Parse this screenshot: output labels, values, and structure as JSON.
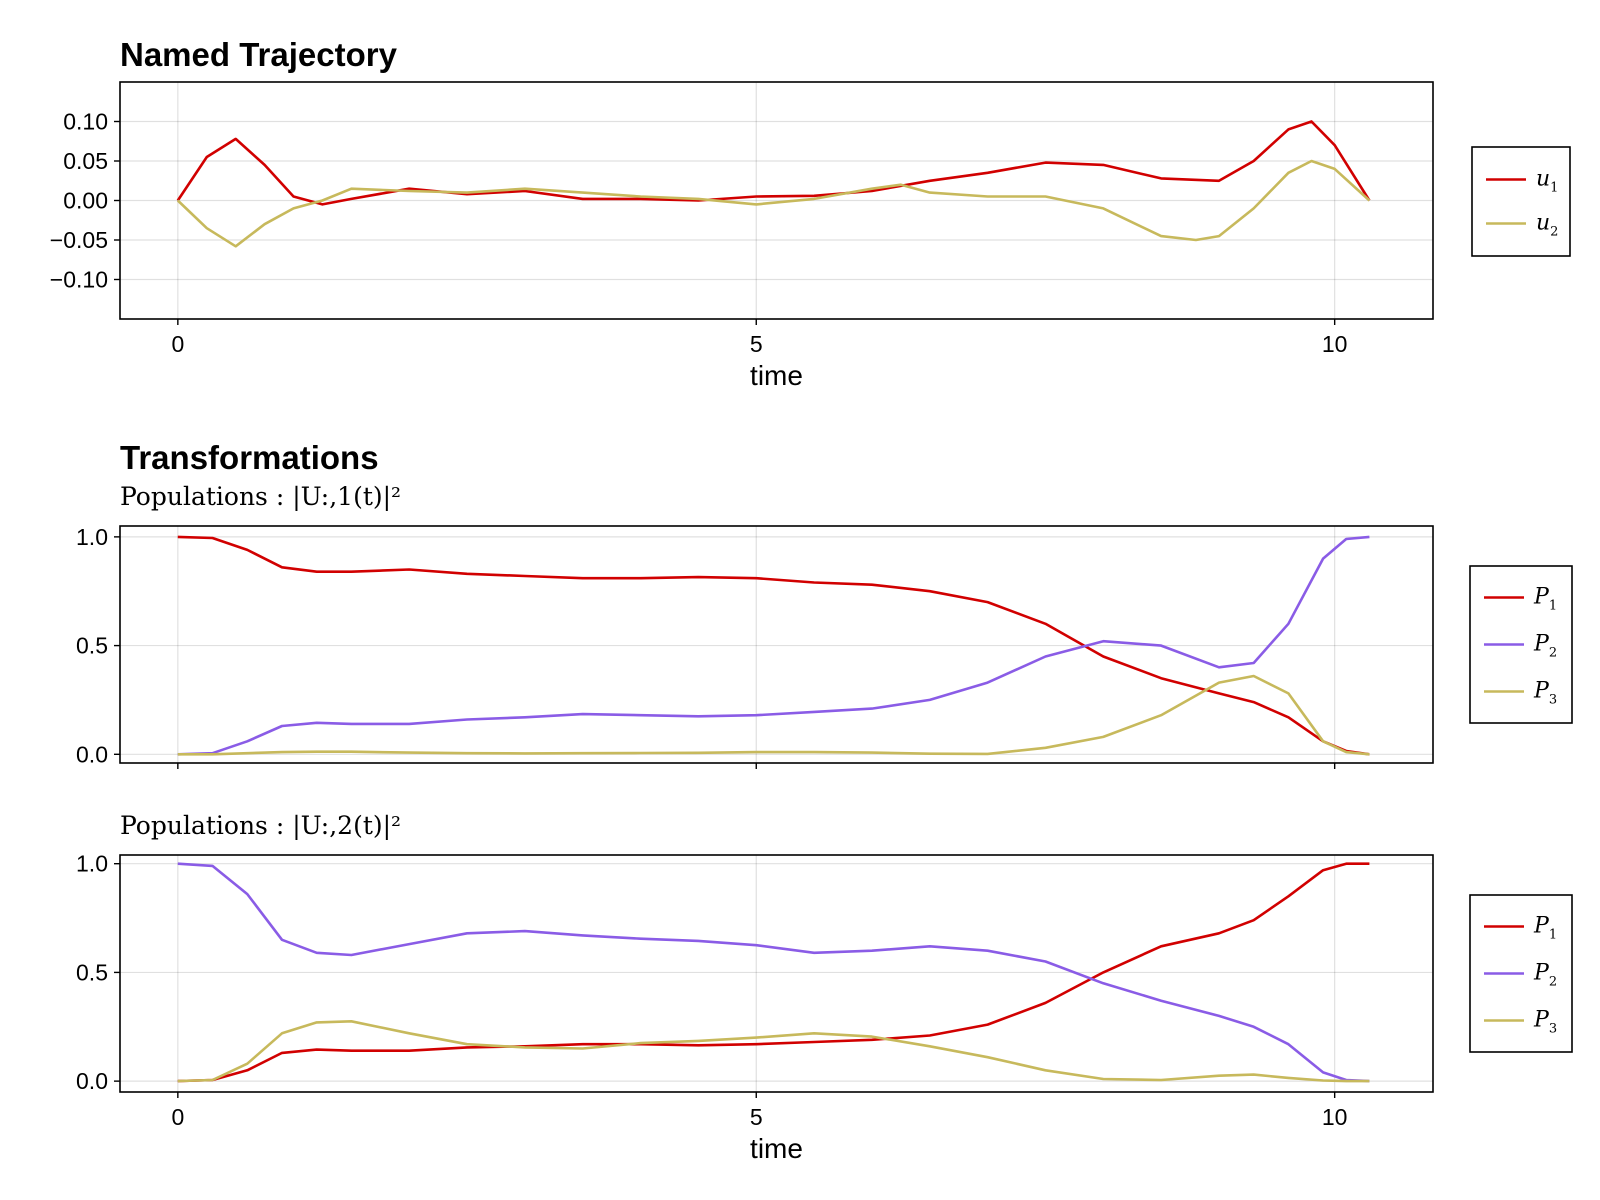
{
  "chart_data": [
    {
      "type": "line",
      "title": "Named Trajectory",
      "subtitle": "",
      "xlabel": "time",
      "ylabel": "",
      "xlim": [
        -0.5,
        10.85
      ],
      "ylim": [
        -0.15,
        0.15
      ],
      "xticks": [
        "0",
        "5",
        "10"
      ],
      "xtick_values": [
        0,
        5,
        10
      ],
      "yticks": [
        "0.10",
        "0.05",
        "0.00",
        "−0.05",
        "−0.10"
      ],
      "ytick_values": [
        0.1,
        0.05,
        0.0,
        -0.05,
        -0.1
      ],
      "grid": true,
      "legend": "outside-right",
      "series": [
        {
          "name": "u_1",
          "color": "#d10000",
          "x": [
            0,
            0.25,
            0.5,
            0.75,
            1.0,
            1.25,
            1.5,
            2.0,
            2.5,
            3.0,
            3.5,
            4.0,
            4.5,
            5.0,
            5.5,
            6.0,
            6.5,
            7.0,
            7.5,
            8.0,
            8.5,
            9.0,
            9.3,
            9.6,
            9.8,
            10.0,
            10.3
          ],
          "values": [
            0.0,
            0.055,
            0.078,
            0.045,
            0.005,
            -0.005,
            0.002,
            0.015,
            0.008,
            0.012,
            0.002,
            0.002,
            0.0,
            0.005,
            0.006,
            0.012,
            0.025,
            0.035,
            0.048,
            0.045,
            0.028,
            0.025,
            0.05,
            0.09,
            0.1,
            0.07,
            0.0
          ]
        },
        {
          "name": "u_2",
          "color": "#c7b95c",
          "x": [
            0,
            0.25,
            0.5,
            0.75,
            1.0,
            1.25,
            1.5,
            2.0,
            2.5,
            3.0,
            3.5,
            4.0,
            4.5,
            5.0,
            5.5,
            6.0,
            6.25,
            6.5,
            7.0,
            7.5,
            8.0,
            8.5,
            8.8,
            9.0,
            9.3,
            9.6,
            9.8,
            10.0,
            10.3
          ],
          "values": [
            0.0,
            -0.035,
            -0.058,
            -0.03,
            -0.01,
            0.0,
            0.015,
            0.012,
            0.01,
            0.015,
            0.01,
            0.005,
            0.002,
            -0.005,
            0.002,
            0.015,
            0.02,
            0.01,
            0.005,
            0.005,
            -0.01,
            -0.045,
            -0.05,
            -0.045,
            -0.01,
            0.035,
            0.05,
            0.04,
            0.0
          ]
        }
      ]
    },
    {
      "type": "line",
      "title": "Transformations",
      "subtitle": "Populations : |U:,1(t)|²",
      "xlabel": "",
      "ylabel": "",
      "xlim": [
        -0.5,
        10.85
      ],
      "ylim": [
        -0.04,
        1.05
      ],
      "xticks": [
        "0",
        "5",
        "10"
      ],
      "xtick_values": [
        0,
        5,
        10
      ],
      "show_xtick_labels": false,
      "yticks": [
        "1.0",
        "0.5",
        "0.0"
      ],
      "ytick_values": [
        1.0,
        0.5,
        0.0
      ],
      "grid": true,
      "legend": "outside-right",
      "series": [
        {
          "name": "P_1",
          "color": "#d10000",
          "x": [
            0,
            0.3,
            0.6,
            0.9,
            1.2,
            1.5,
            2.0,
            2.5,
            3.0,
            3.5,
            4.0,
            4.5,
            5.0,
            5.5,
            6.0,
            6.5,
            7.0,
            7.5,
            8.0,
            8.5,
            9.0,
            9.3,
            9.6,
            9.9,
            10.1,
            10.3
          ],
          "values": [
            1.0,
            0.995,
            0.94,
            0.86,
            0.84,
            0.84,
            0.85,
            0.83,
            0.82,
            0.81,
            0.81,
            0.815,
            0.81,
            0.79,
            0.78,
            0.75,
            0.7,
            0.6,
            0.45,
            0.35,
            0.28,
            0.24,
            0.17,
            0.06,
            0.015,
            0.0
          ]
        },
        {
          "name": "P_2",
          "color": "#8a5ce6",
          "x": [
            0,
            0.3,
            0.6,
            0.9,
            1.2,
            1.5,
            2.0,
            2.5,
            3.0,
            3.5,
            4.0,
            4.5,
            5.0,
            5.5,
            6.0,
            6.5,
            7.0,
            7.5,
            8.0,
            8.5,
            9.0,
            9.3,
            9.6,
            9.9,
            10.1,
            10.3
          ],
          "values": [
            0.0,
            0.005,
            0.06,
            0.13,
            0.145,
            0.14,
            0.14,
            0.16,
            0.17,
            0.185,
            0.18,
            0.175,
            0.18,
            0.195,
            0.21,
            0.25,
            0.33,
            0.45,
            0.52,
            0.5,
            0.4,
            0.42,
            0.6,
            0.9,
            0.99,
            1.0
          ]
        },
        {
          "name": "P_3",
          "color": "#c7b95c",
          "x": [
            0,
            0.3,
            0.6,
            0.9,
            1.2,
            1.5,
            2.0,
            2.5,
            3.0,
            3.5,
            4.0,
            4.5,
            5.0,
            5.5,
            6.0,
            6.5,
            7.0,
            7.5,
            8.0,
            8.5,
            9.0,
            9.3,
            9.6,
            9.9,
            10.1,
            10.3
          ],
          "values": [
            0.0,
            0.0,
            0.005,
            0.01,
            0.012,
            0.012,
            0.008,
            0.005,
            0.004,
            0.005,
            0.006,
            0.007,
            0.01,
            0.01,
            0.008,
            0.003,
            0.002,
            0.03,
            0.08,
            0.18,
            0.33,
            0.36,
            0.28,
            0.06,
            0.01,
            0.0
          ]
        }
      ]
    },
    {
      "type": "line",
      "title": "",
      "subtitle": "Populations : |U:,2(t)|²",
      "xlabel": "time",
      "ylabel": "",
      "xlim": [
        -0.5,
        10.85
      ],
      "ylim": [
        -0.05,
        1.04
      ],
      "xticks": [
        "0",
        "5",
        "10"
      ],
      "xtick_values": [
        0,
        5,
        10
      ],
      "yticks": [
        "1.0",
        "0.5",
        "0.0"
      ],
      "ytick_values": [
        1.0,
        0.5,
        0.0
      ],
      "grid": true,
      "legend": "outside-right",
      "series": [
        {
          "name": "P_1",
          "color": "#d10000",
          "x": [
            0,
            0.3,
            0.6,
            0.9,
            1.2,
            1.5,
            2.0,
            2.5,
            3.0,
            3.5,
            4.0,
            4.5,
            5.0,
            5.5,
            6.0,
            6.5,
            7.0,
            7.5,
            8.0,
            8.5,
            9.0,
            9.3,
            9.6,
            9.9,
            10.1,
            10.3
          ],
          "values": [
            0.0,
            0.005,
            0.05,
            0.13,
            0.145,
            0.14,
            0.14,
            0.155,
            0.16,
            0.17,
            0.17,
            0.165,
            0.17,
            0.18,
            0.19,
            0.21,
            0.26,
            0.36,
            0.5,
            0.62,
            0.68,
            0.74,
            0.85,
            0.97,
            1.0,
            1.0
          ]
        },
        {
          "name": "P_2",
          "color": "#8a5ce6",
          "x": [
            0,
            0.3,
            0.6,
            0.9,
            1.2,
            1.5,
            2.0,
            2.5,
            3.0,
            3.5,
            4.0,
            4.5,
            5.0,
            5.5,
            6.0,
            6.5,
            7.0,
            7.5,
            8.0,
            8.5,
            9.0,
            9.3,
            9.6,
            9.9,
            10.1,
            10.3
          ],
          "values": [
            1.0,
            0.99,
            0.86,
            0.65,
            0.59,
            0.58,
            0.63,
            0.68,
            0.69,
            0.67,
            0.655,
            0.645,
            0.625,
            0.59,
            0.6,
            0.62,
            0.6,
            0.55,
            0.45,
            0.37,
            0.3,
            0.25,
            0.17,
            0.04,
            0.005,
            0.0
          ]
        },
        {
          "name": "P_3",
          "color": "#c7b95c",
          "x": [
            0,
            0.3,
            0.6,
            0.9,
            1.2,
            1.5,
            2.0,
            2.5,
            3.0,
            3.5,
            4.0,
            4.5,
            5.0,
            5.5,
            6.0,
            6.5,
            7.0,
            7.5,
            8.0,
            8.5,
            9.0,
            9.3,
            9.6,
            9.9,
            10.1,
            10.3
          ],
          "values": [
            0.0,
            0.005,
            0.08,
            0.22,
            0.27,
            0.275,
            0.22,
            0.17,
            0.155,
            0.15,
            0.175,
            0.185,
            0.2,
            0.22,
            0.205,
            0.16,
            0.11,
            0.05,
            0.01,
            0.005,
            0.025,
            0.03,
            0.015,
            0.003,
            0.0,
            0.0
          ]
        }
      ]
    }
  ]
}
